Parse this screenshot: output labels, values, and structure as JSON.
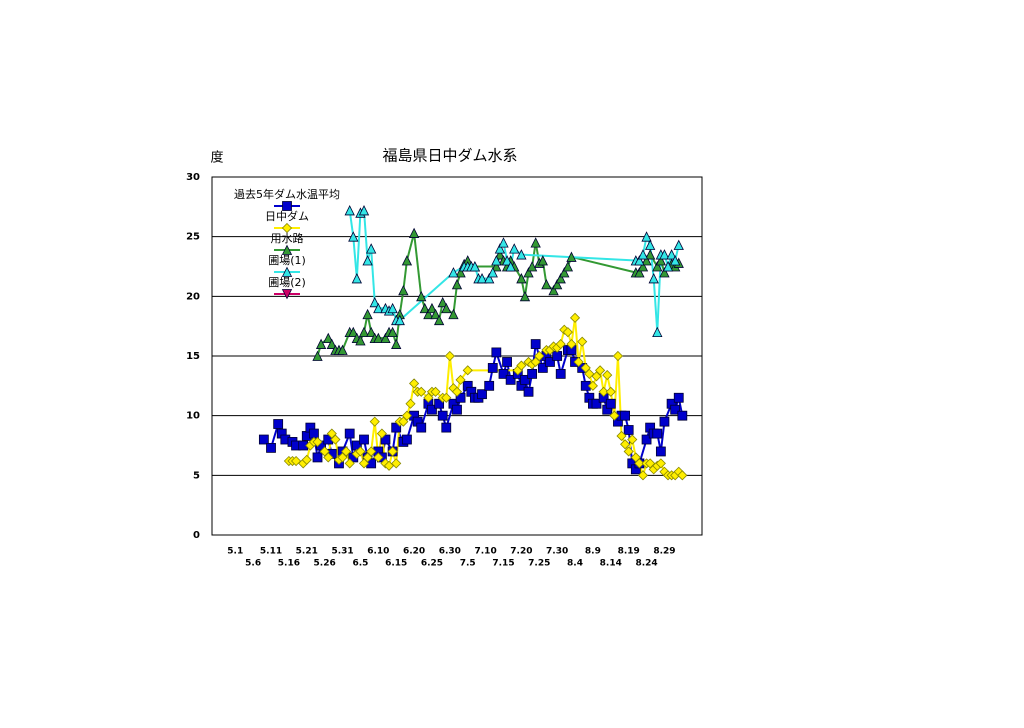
{
  "chart_data": {
    "type": "line",
    "title": "福島県日中ダム水系",
    "y_label": "度",
    "ylim": [
      0,
      30
    ],
    "yticks": [
      0,
      5,
      10,
      15,
      20,
      25,
      30
    ],
    "grid": true,
    "legend": "upper left",
    "categories": [
      null,
      null,
      null,
      null,
      null,
      null,
      "5.1",
      null,
      null,
      null,
      null,
      "5.6",
      null,
      null,
      null,
      null,
      "5.11",
      null,
      null,
      null,
      null,
      "5.16",
      null,
      null,
      null,
      null,
      "5.21",
      null,
      null,
      null,
      null,
      "5.26",
      null,
      null,
      null,
      null,
      "5.31",
      null,
      null,
      null,
      null,
      "6.5",
      null,
      null,
      null,
      null,
      "6.10",
      null,
      null,
      null,
      null,
      "6.15",
      null,
      null,
      null,
      null,
      "6.20",
      null,
      null,
      null,
      null,
      "6.25",
      null,
      null,
      null,
      null,
      "6.30",
      null,
      null,
      null,
      null,
      "7.5",
      null,
      null,
      null,
      null,
      "7.10",
      null,
      null,
      null,
      null,
      "7.15",
      null,
      null,
      null,
      null,
      "7.20",
      null,
      null,
      null,
      null,
      "7.25",
      null,
      null,
      null,
      null,
      "7.30",
      null,
      null,
      null,
      null,
      "8.4",
      null,
      null,
      null,
      null,
      "8.9",
      null,
      null,
      null,
      null,
      "8.14",
      null,
      null,
      null,
      null,
      "8.19",
      null,
      null,
      null,
      null,
      "8.24",
      null,
      null,
      null,
      null,
      "8.29",
      null,
      null,
      null,
      null,
      null,
      null,
      null,
      null,
      null,
      null
    ],
    "series": [
      {
        "name": "過去5年ダム水温平均",
        "color": "#0000cc",
        "marker": "square",
        "values": [
          null,
          null,
          null,
          null,
          null,
          null,
          null,
          null,
          null,
          null,
          null,
          null,
          null,
          null,
          8,
          null,
          7.3,
          null,
          9.3,
          8.5,
          8,
          null,
          7.8,
          7.5,
          null,
          7.5,
          8.3,
          9,
          8.5,
          6.5,
          7.5,
          null,
          8,
          6.8,
          null,
          6,
          7,
          null,
          8.5,
          6.5,
          7.5,
          null,
          8,
          6.5,
          6,
          null,
          7,
          6.5,
          8,
          null,
          7,
          9,
          null,
          7.8,
          8,
          null,
          10,
          9.5,
          9,
          null,
          11,
          10.5,
          null,
          11,
          10,
          9,
          null,
          11,
          10.5,
          11.5,
          null,
          12.5,
          12,
          11.5,
          11.5,
          11.8,
          null,
          12.5,
          14,
          15.3,
          null,
          13.5,
          14.5,
          13,
          null,
          13.5,
          12.5,
          13,
          12,
          13.5,
          16,
          null,
          14,
          15,
          14.5,
          null,
          15,
          13.5,
          null,
          15.5,
          15.5,
          14.5,
          null,
          14,
          12.5,
          11.5,
          11,
          11,
          null,
          11.5,
          10.5,
          11,
          null,
          9.5,
          10,
          10,
          8.8,
          6,
          5.5,
          6,
          null,
          8,
          9,
          8.5,
          8.5,
          7,
          9.5,
          null,
          11,
          10.5,
          11.5,
          10,
          null,
          null,
          null,
          null,
          null
        ]
      },
      {
        "name": "日中ダム",
        "color": "#ffee00",
        "marker": "diamond",
        "values": [
          null,
          null,
          null,
          null,
          null,
          null,
          null,
          null,
          null,
          null,
          null,
          null,
          null,
          null,
          null,
          null,
          null,
          null,
          null,
          null,
          null,
          6.2,
          6.2,
          6.2,
          null,
          6,
          6.3,
          7.5,
          7.8,
          7.8,
          null,
          7,
          6.5,
          8.5,
          8,
          6.3,
          6.5,
          7,
          6,
          null,
          6.8,
          7,
          6,
          6.5,
          7,
          9.5,
          6.5,
          8.5,
          6,
          5.8,
          7,
          6,
          9.5,
          9.5,
          10,
          11,
          12.7,
          12,
          12,
          null,
          11.5,
          12,
          12,
          null,
          11.5,
          11.5,
          15,
          12.3,
          12,
          13,
          null,
          13.8,
          null,
          null,
          null,
          null,
          null,
          null,
          null,
          null,
          null,
          null,
          null,
          null,
          null,
          13.8,
          14.2,
          null,
          14.5,
          14.3,
          14.5,
          15,
          null,
          15.5,
          15.5,
          15.8,
          15.7,
          16,
          17.2,
          17,
          16,
          18.2,
          14.5,
          16.2,
          14,
          13.5,
          12.5,
          13.3,
          13.8,
          12,
          13.4,
          12,
          10,
          15,
          8.3,
          7.6,
          7,
          8,
          6.5,
          6,
          5,
          6,
          6,
          5.5,
          5.8,
          6,
          5.3,
          5,
          5,
          5,
          5.3,
          5,
          null,
          null,
          null,
          null,
          null
        ]
      },
      {
        "name": "用水路",
        "color": "#339933",
        "marker": "triangle",
        "values": [
          null,
          null,
          null,
          null,
          null,
          null,
          null,
          null,
          null,
          null,
          null,
          null,
          null,
          null,
          null,
          null,
          null,
          null,
          null,
          null,
          null,
          null,
          null,
          null,
          null,
          null,
          null,
          null,
          null,
          15,
          16,
          null,
          16.5,
          16,
          15.5,
          15.5,
          15.5,
          null,
          17,
          17,
          16.5,
          16.3,
          17,
          18.5,
          17,
          16.5,
          16.5,
          null,
          16.5,
          17,
          17,
          16,
          18.5,
          20.5,
          23,
          null,
          25.3,
          null,
          20,
          19,
          18.5,
          19,
          18.5,
          18,
          19.5,
          19,
          null,
          18.5,
          21,
          22,
          22.7,
          23,
          22.5,
          22.5,
          null,
          null,
          null,
          null,
          null,
          22.5,
          23.5,
          23,
          22.5,
          23,
          22.5,
          null,
          21.5,
          20,
          22,
          22.5,
          24.5,
          22.8,
          23,
          21,
          null,
          20.5,
          21,
          21.5,
          22,
          22.5,
          23.3,
          null,
          null,
          null,
          null,
          null,
          null,
          null,
          null,
          null,
          null,
          null,
          null,
          null,
          null,
          null,
          null,
          null,
          22,
          22,
          22.5,
          23,
          23.5,
          null,
          22.5,
          23,
          22,
          22.5,
          22.7,
          22.5,
          22.8,
          null,
          null,
          null,
          null,
          null,
          null
        ]
      },
      {
        "name": "圃場(1)",
        "color": "#33e6e6",
        "marker": "triangle",
        "values": [
          null,
          null,
          null,
          null,
          null,
          null,
          null,
          null,
          null,
          null,
          null,
          null,
          null,
          null,
          null,
          null,
          null,
          null,
          null,
          null,
          null,
          null,
          null,
          null,
          null,
          null,
          null,
          null,
          null,
          null,
          null,
          null,
          null,
          null,
          null,
          null,
          null,
          null,
          27.2,
          25,
          21.5,
          27,
          27.2,
          23,
          24,
          19.5,
          19,
          null,
          19,
          18.8,
          19,
          18,
          18,
          null,
          null,
          null,
          null,
          null,
          null,
          null,
          null,
          null,
          null,
          null,
          null,
          null,
          null,
          22,
          null,
          null,
          22.5,
          22.5,
          22.5,
          22.5,
          21.5,
          21.5,
          null,
          21.5,
          22,
          23,
          24,
          24.5,
          23,
          22.5,
          24,
          null,
          23.5,
          null,
          null,
          null,
          null,
          null,
          null,
          null,
          null,
          null,
          null,
          null,
          null,
          null,
          null,
          null,
          null,
          null,
          null,
          null,
          null,
          null,
          null,
          null,
          null,
          null,
          null,
          null,
          null,
          null,
          null,
          null,
          23,
          23,
          23.5,
          25,
          24.3,
          21.5,
          17,
          23.5,
          23.5,
          22.5,
          23.5,
          23,
          24.3,
          null,
          null,
          null,
          null,
          null,
          null
        ]
      },
      {
        "name": "圃場(2)",
        "color": "#cc0066",
        "marker": "triangle-down",
        "values": [
          null,
          null,
          null,
          null,
          null,
          null,
          null,
          null,
          null,
          null,
          null,
          null,
          null,
          null,
          null,
          null,
          null,
          null,
          null,
          null,
          null,
          null,
          null,
          null,
          null,
          null,
          null,
          null,
          null,
          null,
          null,
          null,
          null,
          null,
          null,
          null,
          null,
          null,
          null,
          null,
          null,
          null,
          null,
          null,
          null,
          null,
          null,
          null,
          null,
          null,
          null,
          null,
          null,
          null,
          null,
          null,
          null,
          null,
          null,
          null,
          null,
          null,
          null,
          null,
          null,
          null,
          null,
          null,
          null,
          null,
          null,
          null,
          null,
          null,
          null,
          null,
          null,
          null,
          null,
          null,
          null,
          null,
          null,
          null,
          null,
          null,
          null,
          null,
          null,
          null,
          null,
          null,
          null,
          null,
          null,
          null,
          null,
          null,
          null,
          null,
          null,
          null,
          null,
          null,
          null,
          null,
          null,
          null,
          null,
          null,
          null,
          null,
          null,
          null,
          null,
          null,
          null,
          null,
          null,
          null,
          null,
          null,
          null,
          null,
          null,
          null,
          null,
          null,
          null,
          null,
          null,
          null,
          null,
          null,
          null,
          null,
          null
        ]
      }
    ]
  }
}
